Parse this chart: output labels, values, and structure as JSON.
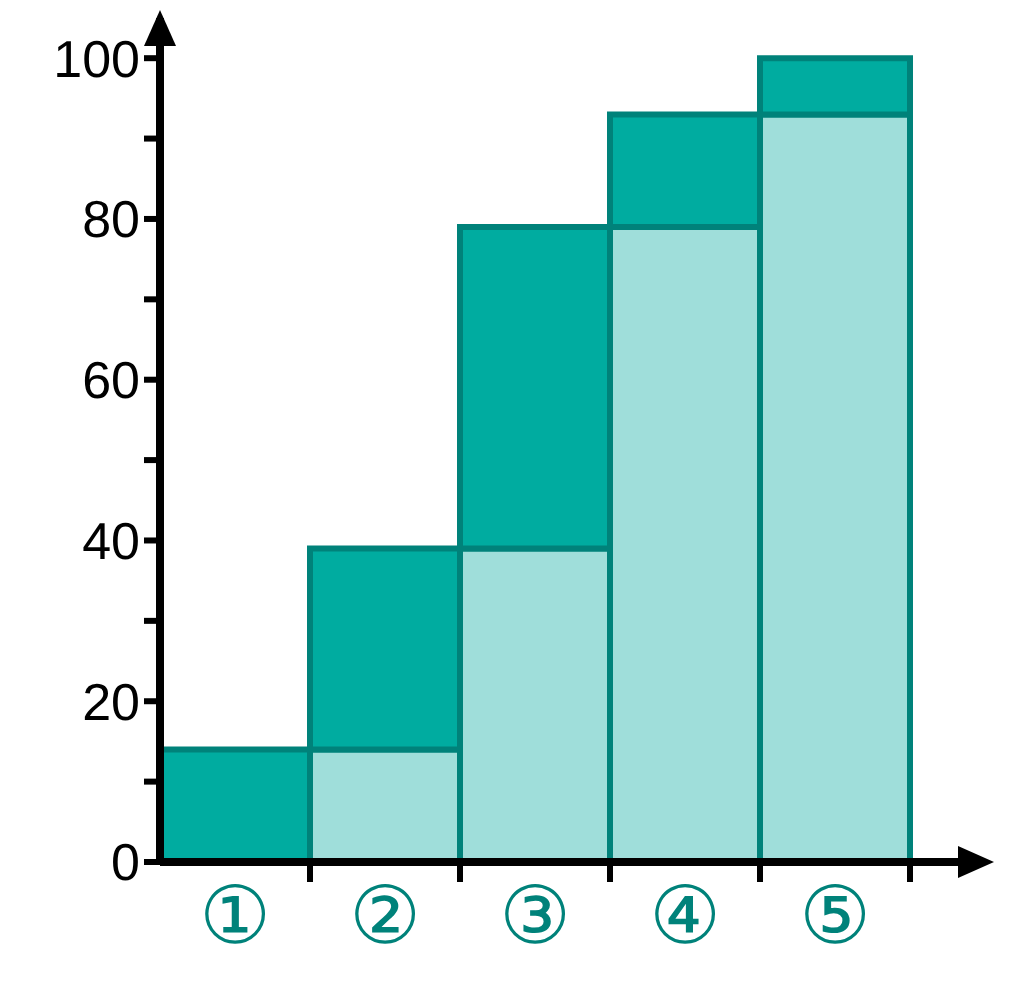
{
  "chart_data": {
    "type": "bar",
    "stacked": true,
    "categories": [
      "①",
      "②",
      "③",
      "④",
      "⑤"
    ],
    "series": [
      {
        "color": "#9fdeda",
        "values": [
          0,
          14,
          39,
          79,
          93
        ]
      },
      {
        "color": "#00aca0",
        "values": [
          14,
          25,
          40,
          14,
          7
        ]
      }
    ],
    "ylim": [
      0,
      105
    ],
    "yticks": [
      0,
      {
        "value": 10,
        "label": null
      },
      20,
      {
        "value": 30,
        "label": null
      },
      40,
      {
        "value": 50,
        "label": null
      },
      60,
      {
        "value": 70,
        "label": null
      },
      80,
      {
        "value": 90,
        "label": null
      },
      100
    ],
    "grid": false,
    "legend": false
  }
}
